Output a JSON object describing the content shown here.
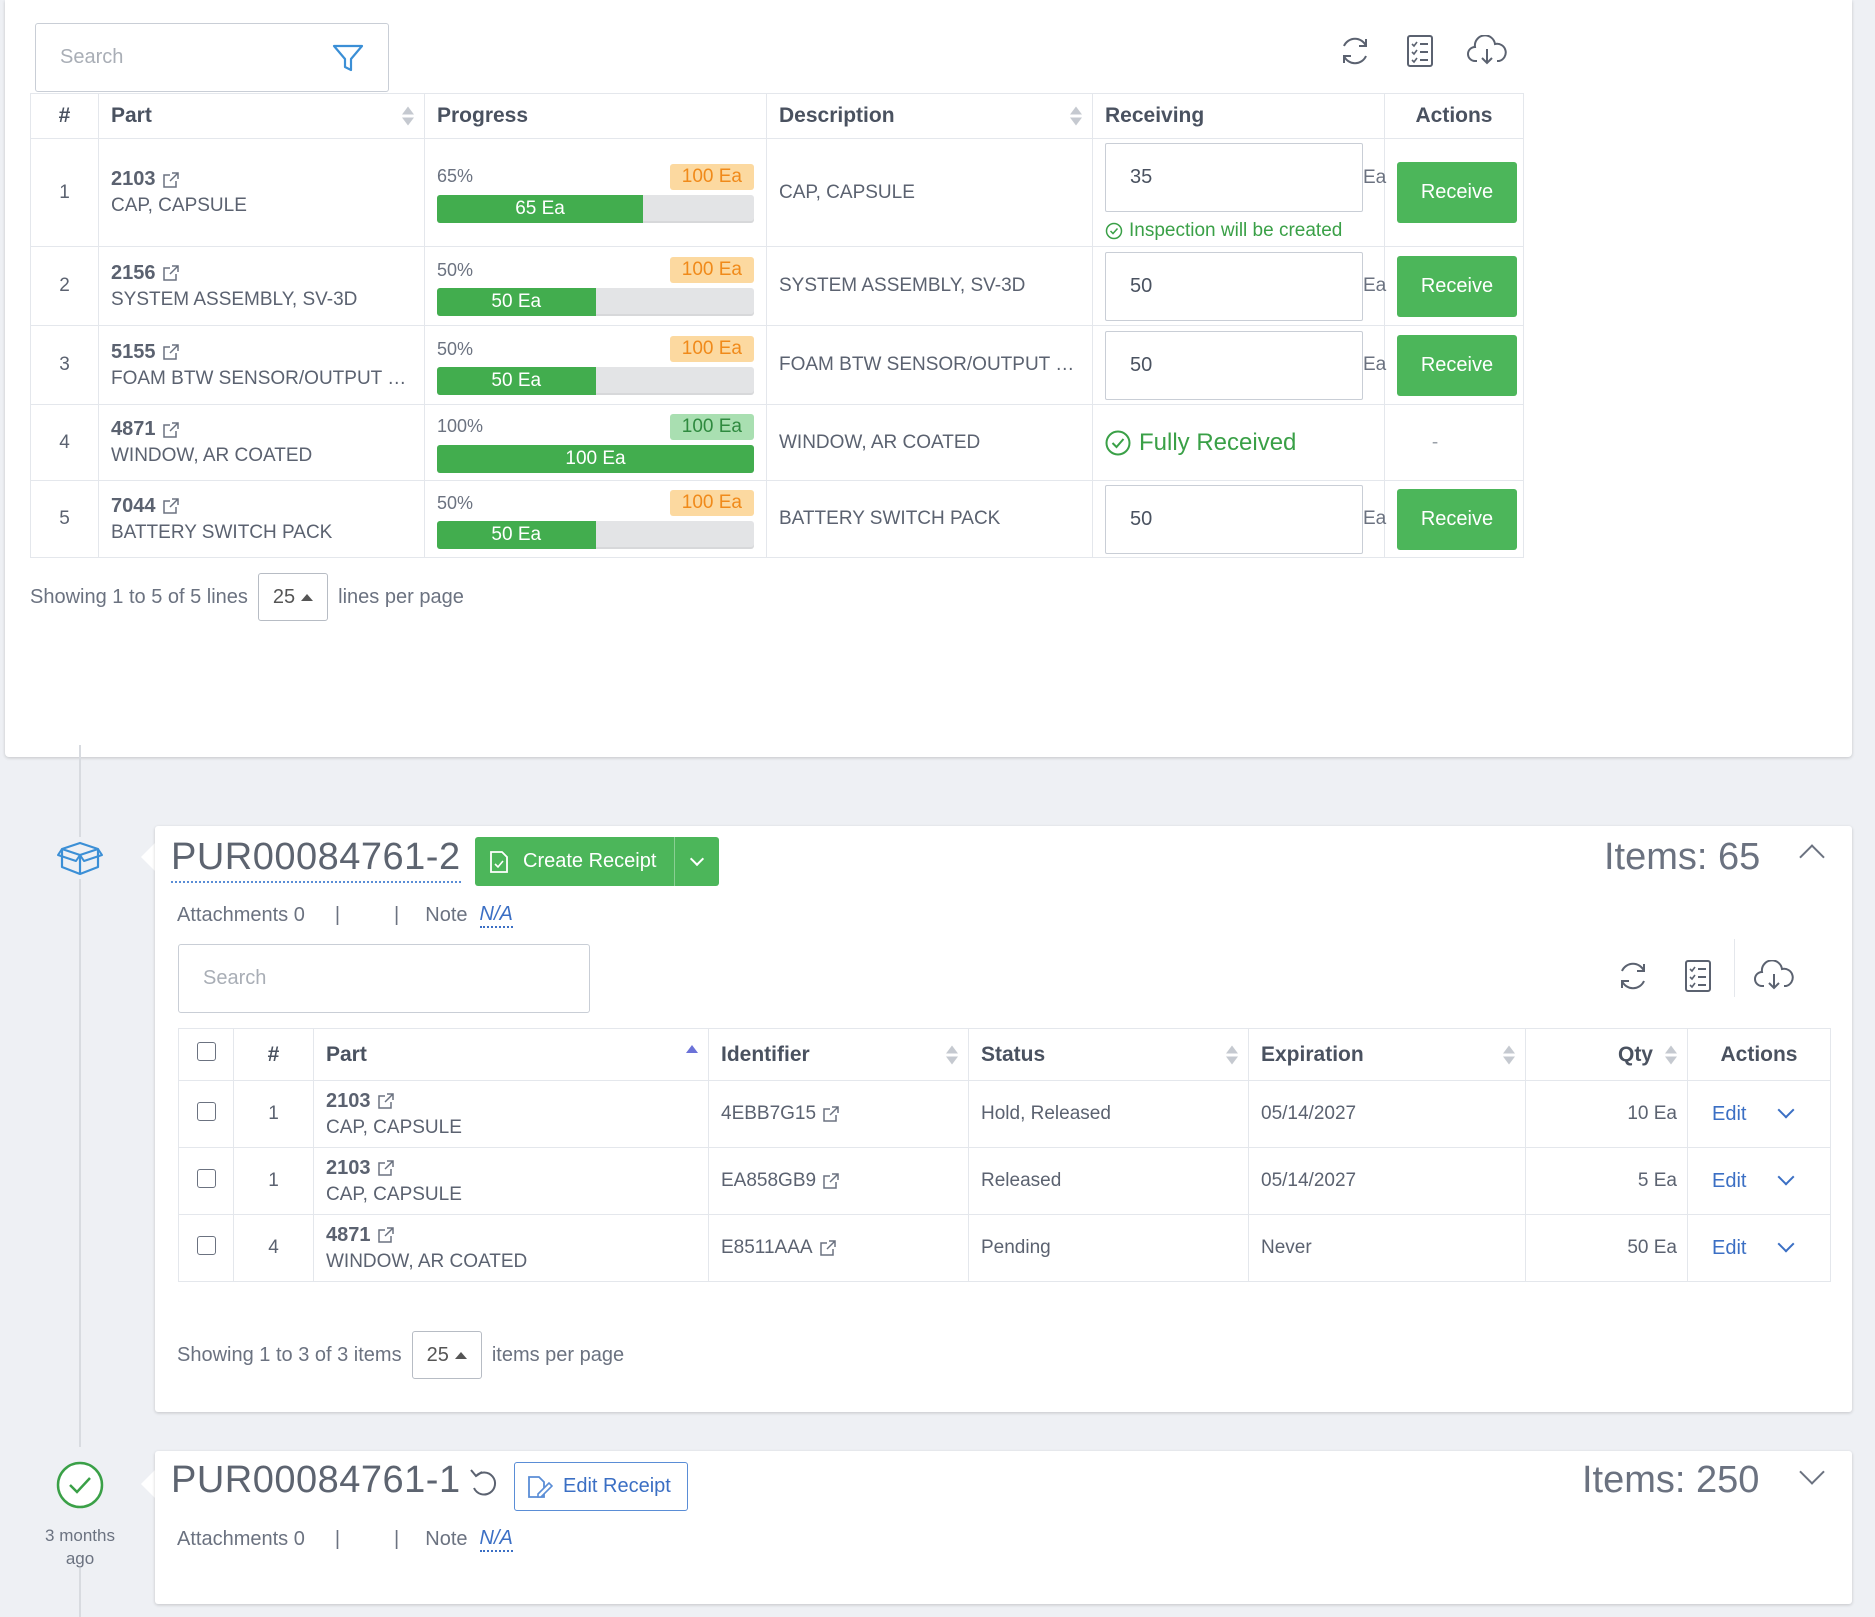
{
  "top": {
    "search_placeholder": "Search",
    "columns": {
      "num": "#",
      "part": "Part",
      "progress": "Progress",
      "description": "Description",
      "receiving": "Receiving",
      "actions": "Actions"
    },
    "rows": [
      {
        "num": "1",
        "part": "2103",
        "part_desc": "CAP, CAPSULE",
        "pct": "65%",
        "fill": 0.65,
        "bar_label": "65 Ea",
        "badge": "100 Ea",
        "badge_color": "orange",
        "description": "CAP, CAPSULE",
        "qty": "35",
        "unit": "Ea",
        "note": "Inspection will be created",
        "action": "Receive"
      },
      {
        "num": "2",
        "part": "2156",
        "part_desc": "SYSTEM ASSEMBLY, SV-3D",
        "pct": "50%",
        "fill": 0.5,
        "bar_label": "50 Ea",
        "badge": "100 Ea",
        "badge_color": "orange",
        "description": "SYSTEM ASSEMBLY, SV-3D",
        "qty": "50",
        "unit": "Ea",
        "action": "Receive"
      },
      {
        "num": "3",
        "part": "5155",
        "part_desc": "FOAM BTW SENSOR/OUTPUT BOARD, ...",
        "pct": "50%",
        "fill": 0.5,
        "bar_label": "50 Ea",
        "badge": "100 Ea",
        "badge_color": "orange",
        "description": "FOAM BTW SENSOR/OUTPUT BOARD, ...",
        "qty": "50",
        "unit": "Ea",
        "action": "Receive"
      },
      {
        "num": "4",
        "part": "4871",
        "part_desc": "WINDOW, AR COATED",
        "pct": "100%",
        "fill": 1.0,
        "bar_label": "100 Ea",
        "badge": "100 Ea",
        "badge_color": "green",
        "description": "WINDOW, AR COATED",
        "status": "Fully Received",
        "action": "-"
      },
      {
        "num": "5",
        "part": "7044",
        "part_desc": "BATTERY SWITCH PACK",
        "pct": "50%",
        "fill": 0.5,
        "bar_label": "50 Ea",
        "badge": "100 Ea",
        "badge_color": "orange",
        "description": "BATTERY SWITCH PACK",
        "qty": "50",
        "unit": "Ea",
        "action": "Receive"
      }
    ],
    "pager": {
      "showing": "Showing 1 to 5 of 5 lines",
      "per_page": "25",
      "suffix": "lines per page"
    }
  },
  "receipt2": {
    "title": "PUR00084761-2",
    "create_label": "Create Receipt",
    "items": "Items: 65",
    "attachments": "Attachments 0",
    "sep": "|",
    "note_label": "Note",
    "note_value": "N/A",
    "search_placeholder": "Search",
    "columns": {
      "num": "#",
      "part": "Part",
      "identifier": "Identifier",
      "status": "Status",
      "expiration": "Expiration",
      "qty": "Qty",
      "actions": "Actions"
    },
    "rows": [
      {
        "num": "1",
        "part": "2103",
        "part_desc": "CAP, CAPSULE",
        "identifier": "4EBB7G15",
        "status": "Hold, Released",
        "expiration": "05/14/2027",
        "qty": "10 Ea",
        "action": "Edit"
      },
      {
        "num": "1",
        "part": "2103",
        "part_desc": "CAP, CAPSULE",
        "identifier": "EA858GB9",
        "status": "Released",
        "expiration": "05/14/2027",
        "qty": "5 Ea",
        "action": "Edit"
      },
      {
        "num": "4",
        "part": "4871",
        "part_desc": "WINDOW, AR COATED",
        "identifier": "E8511AAA",
        "status": "Pending",
        "expiration": "Never",
        "qty": "50 Ea",
        "action": "Edit"
      }
    ],
    "pager": {
      "showing": "Showing 1 to 3 of 3 items",
      "per_page": "25",
      "suffix": "items per page"
    }
  },
  "receipt1": {
    "title": "PUR00084761-1",
    "edit_label": "Edit Receipt",
    "items": "Items: 250",
    "attachments": "Attachments 0",
    "sep": "|",
    "note_label": "Note",
    "note_value": "N/A",
    "ago": "3 months ago"
  },
  "colors": {
    "green": "#4cb65a",
    "blue": "#3b6fc4",
    "orange_bg": "#fcd9a0",
    "orange_text": "#f08a1a"
  },
  "icons": [
    "filter-icon",
    "refresh-icon",
    "checklist-icon",
    "cloud-download-icon",
    "external-link-icon",
    "check-circle-icon",
    "box-icon",
    "document-icon",
    "undo-icon",
    "edit-document-icon",
    "chevron-up-icon",
    "chevron-down-icon"
  ]
}
